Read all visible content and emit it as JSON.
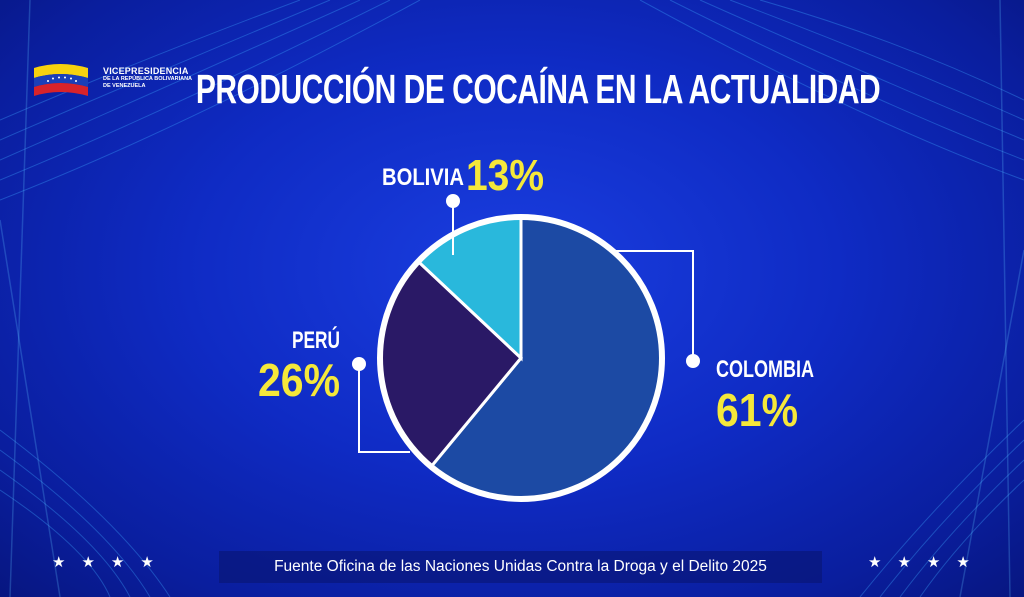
{
  "header": {
    "org_title": "VICEPRESIDENCIA",
    "org_line2": "DE LA REPÚBLICA BOLIVARIANA",
    "org_line3": "DE VENEZUELA",
    "title": "PRODUCCIÓN DE COCAÍNA EN LA ACTUALIDAD"
  },
  "icons": {
    "flag": "venezuela-flag-icon",
    "stars": "star-icon"
  },
  "chart_data": {
    "type": "pie",
    "title": "PRODUCCIÓN DE COCAÍNA EN LA ACTUALIDAD",
    "slices": [
      {
        "label": "COLOMBIA",
        "value": 61,
        "value_label": "61%",
        "color": "#1c4aa4"
      },
      {
        "label": "PERÚ",
        "value": 26,
        "value_label": "26%",
        "color": "#2a1966"
      },
      {
        "label": "BOLIVIA",
        "value": 13,
        "value_label": "13%",
        "color": "#29b8dc"
      }
    ],
    "label_color": "#ffffff",
    "value_color": "#f5e83a",
    "border_color": "#ffffff"
  },
  "footer": {
    "source": "Fuente Oficina de las Naciones Unidas Contra la Droga y el Delito 2025",
    "stars_left": "★★★★",
    "stars_right": "★★★★"
  }
}
